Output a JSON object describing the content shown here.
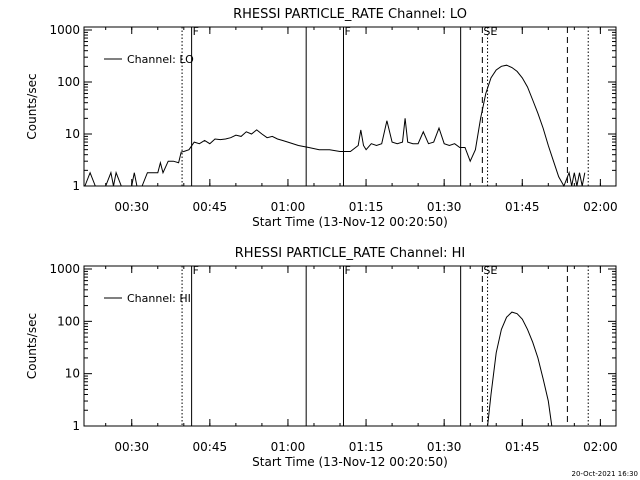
{
  "footer": {
    "timestamp": "20-Oct-2021 16:30"
  },
  "chart_data": [
    {
      "type": "line",
      "title": "RHESSI PARTICLE_RATE Channel: LO",
      "xlabel": "Start Time (13-Nov-12 00:20:50)",
      "ylabel": "Counts/sec",
      "y_scale": "log",
      "xlim": [
        "00:20:50",
        "02:03:00"
      ],
      "ylim": [
        1,
        1000
      ],
      "x_ticks": [
        "00:30",
        "00:45",
        "01:00",
        "01:15",
        "01:30",
        "01:45",
        "02:00"
      ],
      "y_ticks": [
        "1",
        "10",
        "100",
        "1000"
      ],
      "legend": {
        "entries": [
          "Channel: LO"
        ],
        "position": "top-left"
      },
      "markers": [
        {
          "label": "F",
          "time": "00:41:30",
          "style": "solid"
        },
        {
          "label": "F",
          "time": "01:10:40",
          "style": "solid"
        },
        {
          "label": "SE",
          "time": "01:37:20",
          "style": "dashed"
        }
      ],
      "events": [
        {
          "time": "00:39:40",
          "style": "dotted"
        },
        {
          "time": "01:03:30",
          "style": "solid"
        },
        {
          "time": "01:33:10",
          "style": "solid"
        },
        {
          "time": "01:38:20",
          "style": "dotted"
        },
        {
          "time": "01:53:40",
          "style": "dashed"
        },
        {
          "time": "01:57:40",
          "style": "dotted"
        }
      ],
      "series": [
        {
          "x": [
            "00:21:00",
            "00:22:00",
            "00:23:00",
            "00:23:30",
            "00:24:00",
            "00:25:00",
            "00:26:00",
            "00:26:30",
            "00:27:00",
            "00:28:00",
            "00:28:30",
            "00:29:00",
            "00:30:00",
            "00:30:30",
            "00:31:00",
            "00:32:00",
            "00:33:00",
            "00:33:30",
            "00:34:00",
            "00:35:00",
            "00:35:30",
            "00:36:00",
            "00:37:00",
            "00:38:00",
            "00:39:00",
            "00:39:30",
            "00:40:00",
            "00:41:00",
            "00:42:00",
            "00:43:00",
            "00:44:00",
            "00:45:00",
            "00:46:00",
            "00:47:00",
            "00:48:00",
            "00:49:00",
            "00:50:00",
            "00:51:00",
            "00:52:00",
            "00:53:00",
            "00:54:00",
            "00:55:00",
            "00:56:00",
            "00:57:00",
            "00:58:00",
            "00:59:00",
            "01:00:00",
            "01:02:00",
            "01:04:00",
            "01:06:00",
            "01:08:00",
            "01:10:00",
            "01:12:00",
            "01:13:30",
            "01:14:00",
            "01:14:30",
            "01:15:00",
            "01:16:00",
            "01:17:00",
            "01:18:00",
            "01:19:00",
            "01:20:00",
            "01:21:00",
            "01:22:00",
            "01:22:30",
            "01:23:00",
            "01:24:00",
            "01:25:00",
            "01:26:00",
            "01:27:00",
            "01:28:00",
            "01:29:00",
            "01:30:00",
            "01:31:00",
            "01:32:00",
            "01:33:00",
            "01:34:00",
            "01:35:00",
            "01:36:00",
            "01:37:00",
            "01:38:00",
            "01:39:00",
            "01:40:00",
            "01:41:00",
            "01:42:00",
            "01:43:00",
            "01:44:00",
            "01:45:00",
            "01:46:00",
            "01:47:00",
            "01:48:00",
            "01:49:00",
            "01:50:00",
            "01:51:00",
            "01:52:00",
            "01:53:00",
            "01:54:00",
            "01:54:30",
            "01:55:00",
            "01:55:30",
            "01:56:00",
            "01:56:30",
            "01:57:00"
          ],
          "y": [
            1.0,
            1.8,
            1.0,
            1.0,
            1.0,
            1.0,
            1.8,
            1.0,
            1.8,
            1.0,
            1.0,
            1.0,
            1.0,
            1.8,
            1.0,
            1.0,
            1.8,
            1.8,
            1.8,
            1.8,
            2.8,
            1.8,
            3.0,
            3.0,
            2.8,
            4.5,
            4.6,
            5.0,
            7.0,
            6.5,
            7.5,
            6.5,
            8.0,
            7.8,
            8.0,
            8.5,
            9.5,
            9.0,
            11.0,
            10.0,
            12.0,
            10.0,
            8.5,
            9.0,
            8.0,
            7.5,
            7.0,
            6.0,
            5.5,
            5.0,
            5.0,
            4.6,
            4.6,
            6.0,
            12.0,
            6.0,
            5.0,
            6.5,
            6.0,
            6.5,
            18.0,
            7.0,
            6.5,
            7.0,
            20.0,
            7.0,
            6.5,
            6.5,
            11.0,
            6.5,
            7.0,
            13.0,
            6.5,
            6.0,
            6.5,
            5.5,
            5.5,
            3.0,
            5.0,
            20.0,
            60.0,
            120.0,
            170.0,
            200.0,
            210.0,
            190.0,
            160.0,
            120.0,
            80.0,
            45.0,
            25.0,
            13.0,
            6.0,
            3.0,
            1.5,
            1.0,
            1.8,
            1.0,
            1.8,
            1.0,
            1.8,
            1.0,
            1.8
          ]
        }
      ]
    },
    {
      "type": "line",
      "title": "RHESSI PARTICLE_RATE Channel: HI",
      "xlabel": "Start Time (13-Nov-12 00:20:50)",
      "ylabel": "Counts/sec",
      "y_scale": "log",
      "xlim": [
        "00:20:50",
        "02:03:00"
      ],
      "ylim": [
        1,
        1000
      ],
      "x_ticks": [
        "00:30",
        "00:45",
        "01:00",
        "01:15",
        "01:30",
        "01:45",
        "02:00"
      ],
      "y_ticks": [
        "1",
        "10",
        "100",
        "1000"
      ],
      "legend": {
        "entries": [
          "Channel: HI"
        ],
        "position": "top-left"
      },
      "markers": [
        {
          "label": "F",
          "time": "00:41:30",
          "style": "solid"
        },
        {
          "label": "F",
          "time": "01:10:40",
          "style": "solid"
        },
        {
          "label": "SE",
          "time": "01:37:20",
          "style": "dashed"
        }
      ],
      "events": [
        {
          "time": "00:39:40",
          "style": "dotted"
        },
        {
          "time": "01:03:30",
          "style": "solid"
        },
        {
          "time": "01:33:10",
          "style": "solid"
        },
        {
          "time": "01:38:20",
          "style": "dotted"
        },
        {
          "time": "01:53:40",
          "style": "dashed"
        },
        {
          "time": "01:57:40",
          "style": "dotted"
        }
      ],
      "series": [
        {
          "x": [
            "01:38:20",
            "01:39:00",
            "01:40:00",
            "01:41:00",
            "01:42:00",
            "01:43:00",
            "01:44:00",
            "01:45:00",
            "01:46:00",
            "01:47:00",
            "01:48:00",
            "01:49:00",
            "01:50:00",
            "01:50:40"
          ],
          "y": [
            1.0,
            4.0,
            25.0,
            70.0,
            120.0,
            150.0,
            140.0,
            110.0,
            70.0,
            40.0,
            20.0,
            8.0,
            3.0,
            1.0
          ]
        }
      ]
    }
  ]
}
